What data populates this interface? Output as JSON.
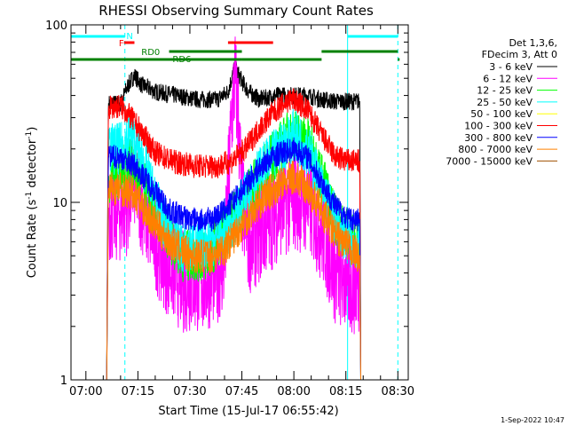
{
  "chart_data": {
    "type": "line",
    "title": "RHESSI Observing Summary Count Rates",
    "xlabel": "Start Time (15-Jul-17 06:55:42)",
    "ylabel_parts": [
      "Count Rate (s",
      "-1",
      " detector",
      "-1",
      ")"
    ],
    "yscale": "log",
    "ylim": [
      1,
      100
    ],
    "xlim": [
      "06:55:42",
      "08:33:00"
    ],
    "x_ticks": [
      "07:00",
      "07:15",
      "07:30",
      "07:45",
      "08:00",
      "08:15",
      "08:30"
    ],
    "y_ticks": [
      "1",
      "10",
      "100"
    ],
    "footer_date": "1-Sep-2022 10:47",
    "legend": {
      "header": [
        "Det 1,3,6,",
        "FDecim 3, Att 0"
      ],
      "entries": [
        {
          "label": "3 - 6 keV",
          "color": "#000000"
        },
        {
          "label": "6 - 12 keV",
          "color": "#ff00ff"
        },
        {
          "label": "12 - 25 keV",
          "color": "#00ff00"
        },
        {
          "label": "25 - 50 keV",
          "color": "#00ffff"
        },
        {
          "label": "50 - 100 keV",
          "color": "#ffff00"
        },
        {
          "label": "100 - 300 keV",
          "color": "#ff0000"
        },
        {
          "label": "300 - 800 keV",
          "color": "#0000ff"
        },
        {
          "label": "800 - 7000 keV",
          "color": "#ff8000"
        },
        {
          "label": "7000 - 15000 keV",
          "color": "#a05000"
        }
      ]
    },
    "series": [
      {
        "name": "3 - 6 keV",
        "color": "#000000",
        "noise": 0.05,
        "points": [
          [
            "07:06",
            1
          ],
          [
            "07:06.5",
            36
          ],
          [
            "07:10",
            36
          ],
          [
            "07:12",
            45
          ],
          [
            "07:14",
            52
          ],
          [
            "07:16",
            46
          ],
          [
            "07:20",
            42
          ],
          [
            "07:26",
            40
          ],
          [
            "07:32",
            38
          ],
          [
            "07:38",
            38
          ],
          [
            "07:41",
            42
          ],
          [
            "07:43",
            58
          ],
          [
            "07:45",
            48
          ],
          [
            "07:47",
            42
          ],
          [
            "07:50",
            38
          ],
          [
            "07:55",
            40
          ],
          [
            "08:00",
            40
          ],
          [
            "08:04",
            40
          ],
          [
            "08:08",
            38
          ],
          [
            "08:12",
            37
          ],
          [
            "08:16",
            37
          ],
          [
            "08:19",
            37
          ],
          [
            "08:19.3",
            1
          ]
        ]
      },
      {
        "name": "6 - 12 keV",
        "color": "#ff00ff",
        "noise": 0.3,
        "points": [
          [
            "07:06",
            1
          ],
          [
            "07:06.5",
            9
          ],
          [
            "07:10",
            9
          ],
          [
            "07:12",
            10
          ],
          [
            "07:14",
            14
          ],
          [
            "07:17",
            9
          ],
          [
            "07:22",
            5
          ],
          [
            "07:28",
            3.6
          ],
          [
            "07:34",
            3.6
          ],
          [
            "07:40",
            4.5
          ],
          [
            "07:42",
            30
          ],
          [
            "07:43",
            50
          ],
          [
            "07:44",
            30
          ],
          [
            "07:45",
            10
          ],
          [
            "07:47",
            6
          ],
          [
            "07:52",
            7.5
          ],
          [
            "07:56",
            9.5
          ],
          [
            "08:00",
            10.5
          ],
          [
            "08:04",
            10
          ],
          [
            "08:08",
            7
          ],
          [
            "08:12",
            4
          ],
          [
            "08:16",
            3.5
          ],
          [
            "08:19",
            3.5
          ],
          [
            "08:19.3",
            1
          ]
        ]
      },
      {
        "name": "12 - 25 keV",
        "color": "#00ff00",
        "noise": 0.15,
        "points": [
          [
            "07:06",
            1
          ],
          [
            "07:06.5",
            14
          ],
          [
            "07:10",
            14
          ],
          [
            "07:13",
            18
          ],
          [
            "07:16",
            13
          ],
          [
            "07:21",
            8
          ],
          [
            "07:28",
            5
          ],
          [
            "07:35",
            5
          ],
          [
            "07:40",
            7
          ],
          [
            "07:44",
            9
          ],
          [
            "07:48",
            12
          ],
          [
            "07:54",
            18
          ],
          [
            "07:58",
            23
          ],
          [
            "08:00",
            24
          ],
          [
            "08:04",
            22
          ],
          [
            "08:08",
            14
          ],
          [
            "08:12",
            8
          ],
          [
            "08:16",
            6.5
          ],
          [
            "08:19",
            6
          ],
          [
            "08:19.3",
            1
          ]
        ]
      },
      {
        "name": "25 - 50 keV",
        "color": "#00ffff",
        "noise": 0.15,
        "points": [
          [
            "07:06",
            1
          ],
          [
            "07:06.5",
            20
          ],
          [
            "07:10",
            20
          ],
          [
            "07:13",
            24
          ],
          [
            "07:16",
            18
          ],
          [
            "07:22",
            8
          ],
          [
            "07:28",
            5.5
          ],
          [
            "07:35",
            6
          ],
          [
            "07:40",
            6.5
          ],
          [
            "07:44",
            9
          ],
          [
            "07:48",
            13
          ],
          [
            "07:54",
            18
          ],
          [
            "07:58",
            22
          ],
          [
            "08:00",
            24
          ],
          [
            "08:04",
            20
          ],
          [
            "08:08",
            12
          ],
          [
            "08:12",
            8
          ],
          [
            "08:16",
            6
          ],
          [
            "08:19",
            6
          ],
          [
            "08:19.3",
            1
          ]
        ]
      },
      {
        "name": "100 - 300 keV",
        "color": "#ff0000",
        "noise": 0.07,
        "points": [
          [
            "07:06",
            1
          ],
          [
            "07:06.5",
            34
          ],
          [
            "07:10",
            35
          ],
          [
            "07:13",
            30
          ],
          [
            "07:16",
            25
          ],
          [
            "07:20",
            19
          ],
          [
            "07:25",
            17
          ],
          [
            "07:32",
            16
          ],
          [
            "07:38",
            16
          ],
          [
            "07:42",
            17
          ],
          [
            "07:46",
            20
          ],
          [
            "07:50",
            26
          ],
          [
            "07:54",
            32
          ],
          [
            "07:58",
            37
          ],
          [
            "08:00",
            38
          ],
          [
            "08:04",
            33
          ],
          [
            "08:08",
            24
          ],
          [
            "08:12",
            18
          ],
          [
            "08:16",
            17
          ],
          [
            "08:19",
            17
          ],
          [
            "08:19.3",
            1
          ]
        ]
      },
      {
        "name": "300 - 800 keV",
        "color": "#0000ff",
        "noise": 0.07,
        "points": [
          [
            "07:06",
            1
          ],
          [
            "07:06.5",
            18
          ],
          [
            "07:10",
            18
          ],
          [
            "07:14",
            16
          ],
          [
            "07:18",
            13
          ],
          [
            "07:24",
            9
          ],
          [
            "07:30",
            8
          ],
          [
            "07:36",
            8
          ],
          [
            "07:40",
            9
          ],
          [
            "07:44",
            11
          ],
          [
            "07:48",
            14
          ],
          [
            "07:52",
            17
          ],
          [
            "07:56",
            19
          ],
          [
            "08:00",
            20
          ],
          [
            "08:04",
            18
          ],
          [
            "08:08",
            13
          ],
          [
            "08:12",
            9.5
          ],
          [
            "08:16",
            8
          ],
          [
            "08:19",
            8
          ],
          [
            "08:19.3",
            1
          ]
        ]
      },
      {
        "name": "800 - 7000 keV",
        "color": "#ff8000",
        "noise": 0.1,
        "points": [
          [
            "07:06",
            1
          ],
          [
            "07:06.5",
            12
          ],
          [
            "07:10",
            12
          ],
          [
            "07:14",
            11
          ],
          [
            "07:18",
            8.5
          ],
          [
            "07:24",
            6
          ],
          [
            "07:30",
            5
          ],
          [
            "07:36",
            5
          ],
          [
            "07:40",
            5.5
          ],
          [
            "07:44",
            7
          ],
          [
            "07:48",
            9
          ],
          [
            "07:52",
            11
          ],
          [
            "07:56",
            12.5
          ],
          [
            "08:00",
            14
          ],
          [
            "08:04",
            12
          ],
          [
            "08:08",
            9
          ],
          [
            "08:12",
            6.5
          ],
          [
            "08:16",
            5.5
          ],
          [
            "08:19",
            5
          ],
          [
            "08:19.3",
            1
          ]
        ]
      }
    ],
    "vlines_solid": [
      {
        "x": "06:55:42",
        "color": "#00ffff"
      },
      {
        "x": "08:15:30",
        "color": "#00ffff"
      }
    ],
    "vlines_dashed": [
      {
        "x": "07:11:15",
        "color": "#00ffff"
      },
      {
        "x": "08:30:00",
        "color": "#00ffff"
      }
    ],
    "flag_bars": [
      {
        "label": "N",
        "color": "#00ffff",
        "row": 0,
        "segments": [
          [
            "06:55:42",
            "07:11:15"
          ],
          [
            "08:15:30",
            "08:30:00"
          ]
        ]
      },
      {
        "label": "F",
        "color": "#ff0000",
        "row": 1,
        "segments": [
          [
            "07:11",
            "07:14"
          ],
          [
            "07:41",
            "07:54"
          ]
        ]
      },
      {
        "label": "RD0",
        "color": "#008000",
        "row": 2,
        "segments": [
          [
            "07:24",
            "07:45"
          ],
          [
            "08:08",
            "08:30"
          ]
        ]
      },
      {
        "label": "RD6",
        "color": "#008000",
        "row": 3,
        "segments": [
          [
            "06:55:42",
            "07:45"
          ],
          [
            "07:45",
            "08:08"
          ],
          [
            "08:30",
            "08:30:30"
          ]
        ]
      }
    ]
  }
}
